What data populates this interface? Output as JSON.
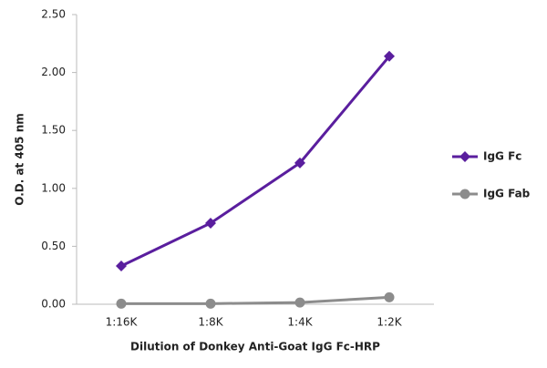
{
  "chart_data": {
    "type": "line",
    "x_label": "Dilution of Donkey Anti-Goat IgG Fc-HRP",
    "y_label": "O.D. at 405 nm",
    "categories": [
      "1:16K",
      "1:8K",
      "1:4K",
      "1:2K"
    ],
    "series": [
      {
        "name": "IgG Fc",
        "color": "#5a1e9e",
        "marker": "diamond",
        "values": [
          0.33,
          0.7,
          1.22,
          2.14
        ]
      },
      {
        "name": "IgG Fab",
        "color": "#8c8c8c",
        "marker": "circle",
        "values": [
          0.005,
          0.005,
          0.015,
          0.06
        ]
      }
    ],
    "ylim": [
      0,
      2.5
    ],
    "yticks": [
      {
        "value": 0,
        "label": "0.00"
      },
      {
        "value": 0.5,
        "label": "0.50"
      },
      {
        "value": 1,
        "label": "1.00"
      },
      {
        "value": 1.5,
        "label": "1.50"
      },
      {
        "value": 2,
        "label": "2.00"
      },
      {
        "value": 2.5,
        "label": "2.50"
      }
    ],
    "grid": false,
    "legend": "right"
  }
}
